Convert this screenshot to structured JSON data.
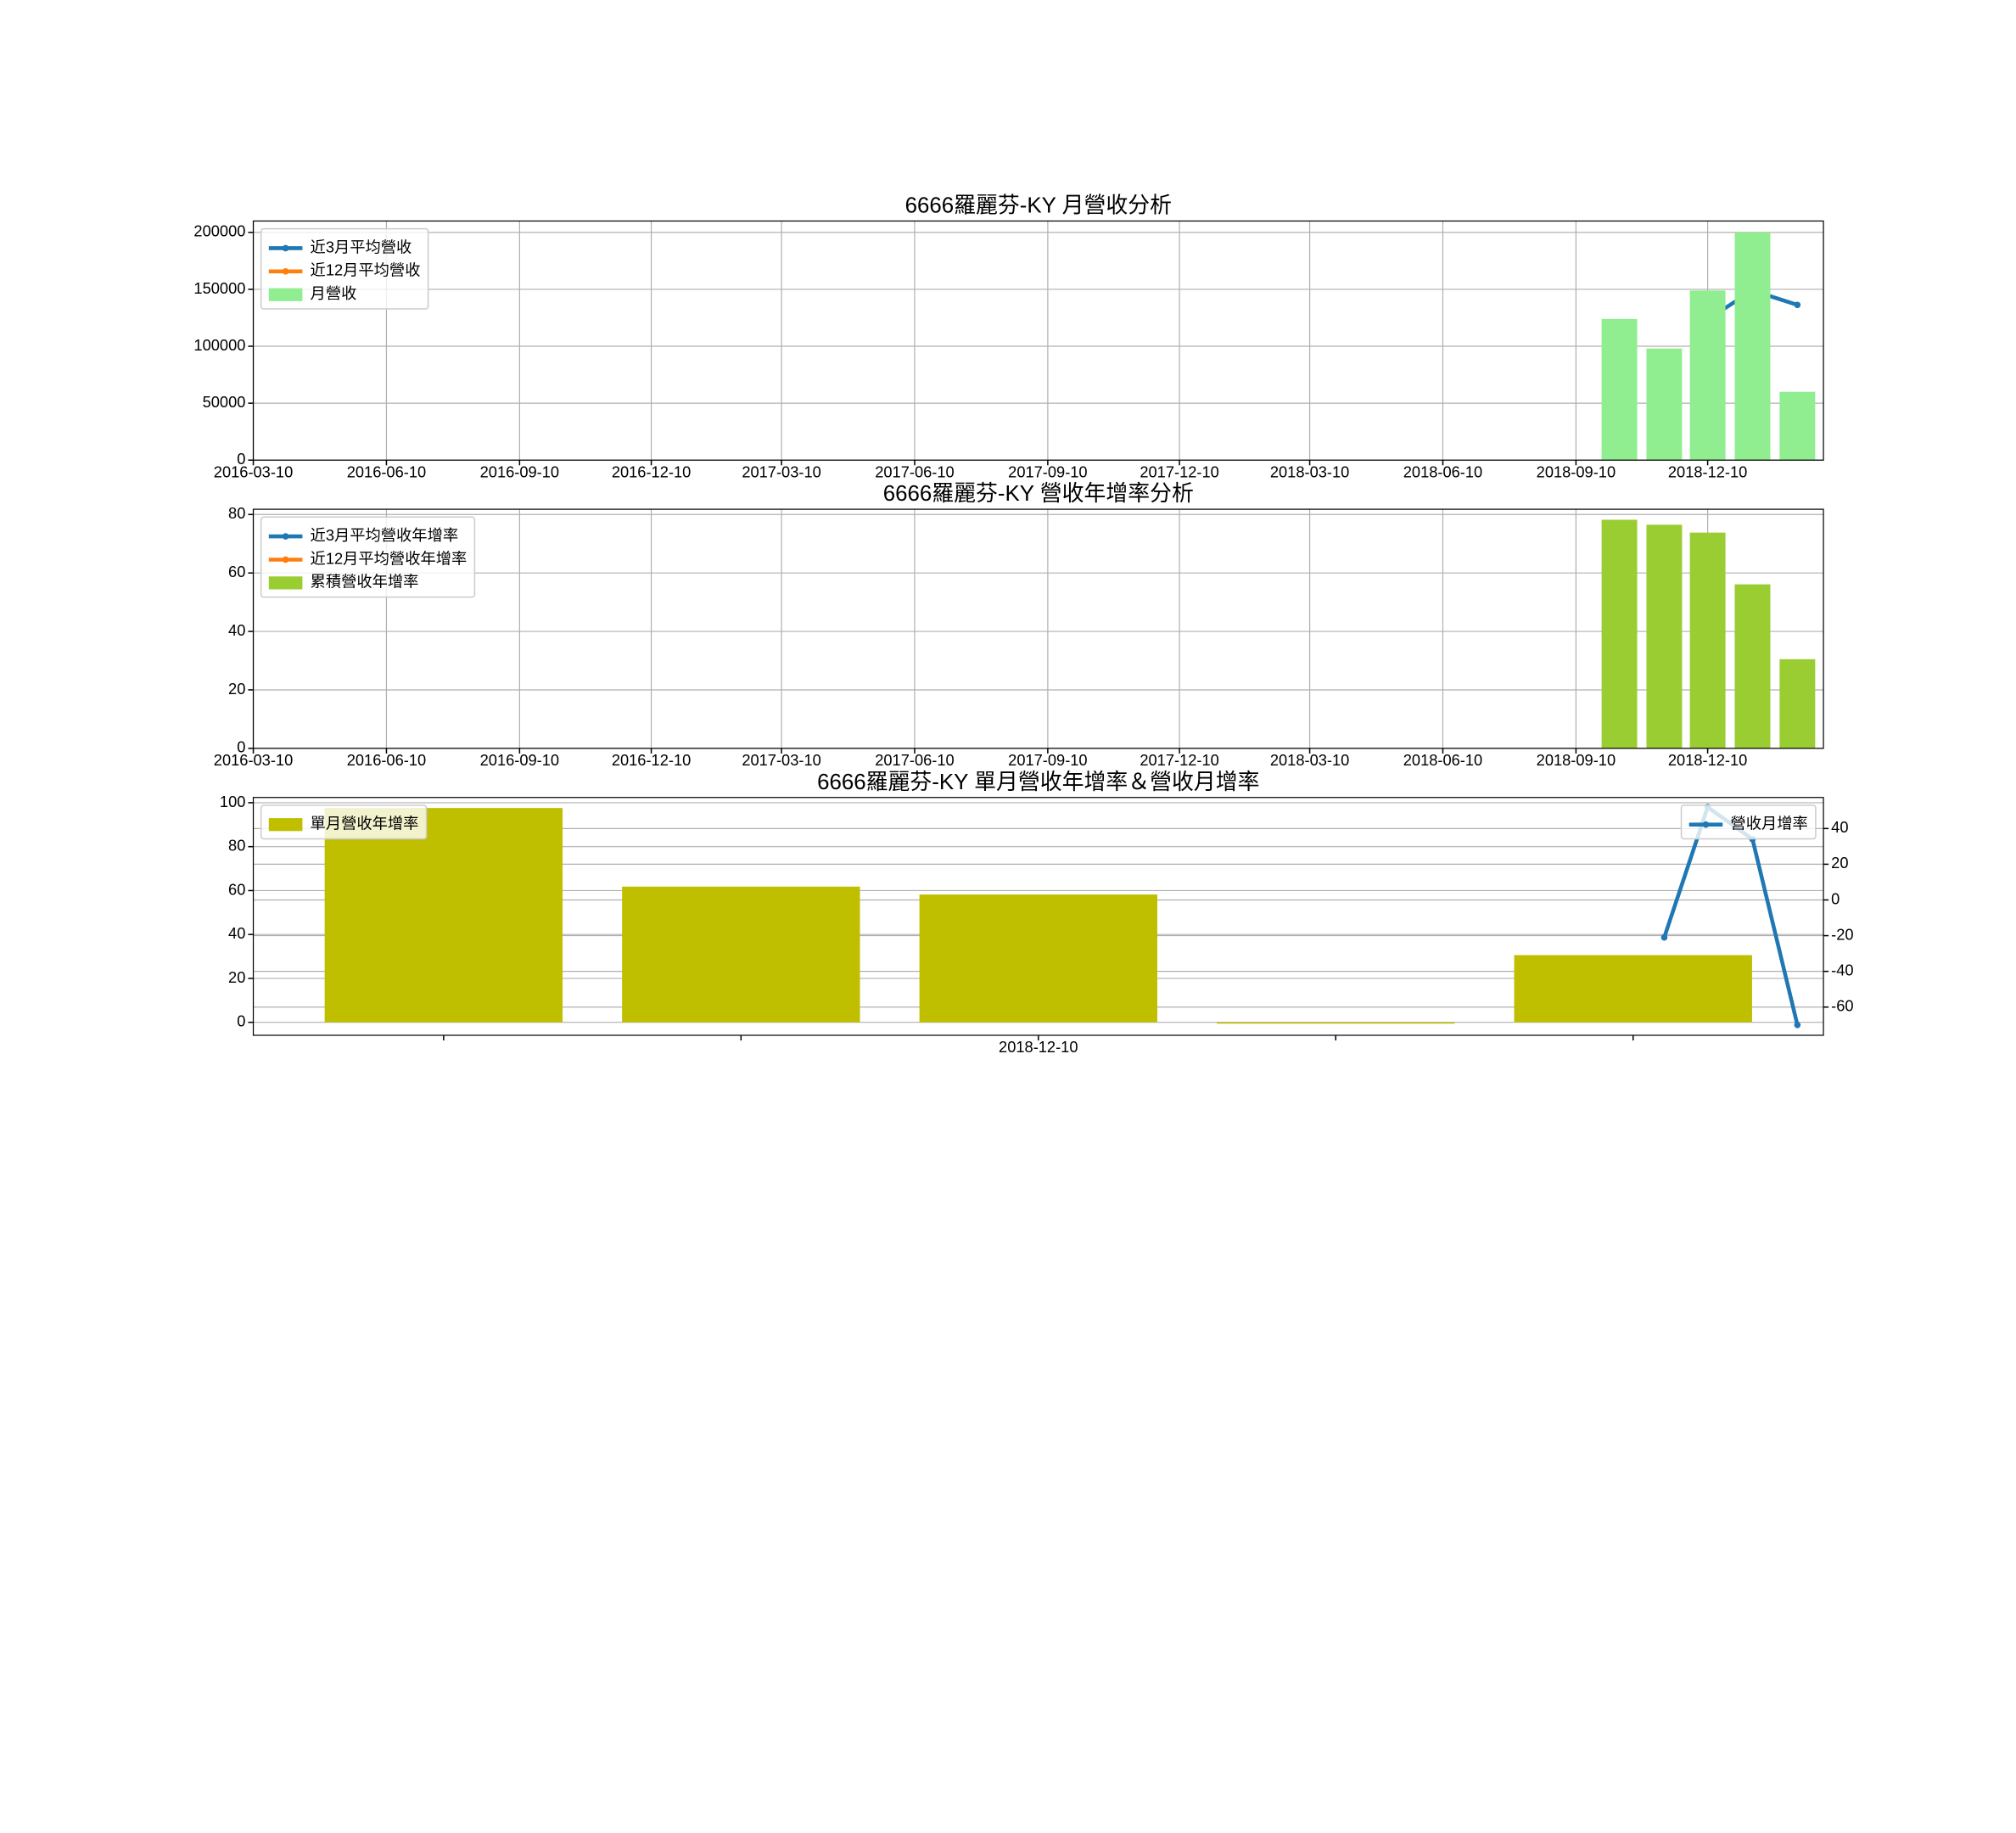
{
  "chart_data": [
    {
      "type": "bar_line",
      "title": "6666羅麗芬-KY 月營收分析",
      "x": [
        "2018-10-10",
        "2018-11-10",
        "2018-12-10",
        "2019-01-10",
        "2019-02-10"
      ],
      "series": [
        {
          "name": "近3月平均營收",
          "kind": "line",
          "color": "#1f77b4",
          "values": [
            null,
            null,
            123667,
            149000,
            136333
          ]
        },
        {
          "name": "近12月平均營收",
          "kind": "line",
          "color": "#ff7f0e",
          "values": [
            null,
            null,
            null,
            null,
            null
          ]
        },
        {
          "name": "月營收",
          "kind": "bar",
          "color": "#90ee90",
          "values": [
            124000,
            98000,
            149000,
            200000,
            60000
          ]
        }
      ],
      "xlim": [
        "2016-03-10",
        "2019-02-28"
      ],
      "xticks": [
        "2016-03-10",
        "2016-06-10",
        "2016-09-10",
        "2016-12-10",
        "2017-03-10",
        "2017-06-10",
        "2017-09-10",
        "2017-12-10",
        "2018-03-10",
        "2018-06-10",
        "2018-09-10",
        "2018-12-10"
      ],
      "ylim": [
        0,
        210000
      ],
      "yticks": [
        0,
        50000,
        100000,
        150000,
        200000
      ],
      "grid": true,
      "legend": "upper left"
    },
    {
      "type": "bar_line",
      "title": "6666羅麗芬-KY 營收年增率分析",
      "x": [
        "2018-10-10",
        "2018-11-10",
        "2018-12-10",
        "2019-01-10",
        "2019-02-10"
      ],
      "series": [
        {
          "name": "近3月平均營收年增率",
          "kind": "line",
          "color": "#1f77b4",
          "values": [
            null,
            null,
            null,
            null,
            null
          ]
        },
        {
          "name": "近12月平均營收年增率",
          "kind": "line",
          "color": "#ff7f0e",
          "values": [
            null,
            null,
            null,
            null,
            null
          ]
        },
        {
          "name": "累積營收年增率",
          "kind": "bar",
          "color": "#9acd32",
          "values": [
            78.2,
            76.5,
            73.8,
            56.1,
            30.5
          ]
        }
      ],
      "xlim": [
        "2016-03-10",
        "2019-02-28"
      ],
      "xticks": [
        "2016-03-10",
        "2016-06-10",
        "2016-09-10",
        "2016-12-10",
        "2017-03-10",
        "2017-06-10",
        "2017-09-10",
        "2017-12-10",
        "2018-03-10",
        "2018-06-10",
        "2018-09-10",
        "2018-12-10"
      ],
      "ylim": [
        0,
        81.8
      ],
      "yticks": [
        0,
        20,
        40,
        60,
        80
      ],
      "grid": true,
      "legend": "upper left"
    },
    {
      "type": "bar_line",
      "title": "6666羅麗芬-KY 單月營收年增率＆營收月增率",
      "categories": [
        null,
        null,
        "2018-12-10",
        null,
        null
      ],
      "series": [
        {
          "name": "單月營收年增率",
          "kind": "bar",
          "color": "#bfbf00",
          "values": [
            97.6,
            61.8,
            58.2,
            -0.6,
            30.6
          ]
        },
        {
          "name": "營收月增率",
          "kind": "line",
          "axis": "y2",
          "color": "#1f77b4",
          "x": [
            "2018-11-10",
            "2018-12-10",
            "2019-01-10",
            "2019-02-10"
          ],
          "values": [
            -21,
            52,
            34,
            -70
          ]
        }
      ],
      "xlim": [
        "2016-03-10",
        "2019-02-28"
      ],
      "ylim": [
        -5.9,
        102.4
      ],
      "yticks": [
        0,
        20,
        40,
        60,
        80,
        100
      ],
      "y2lim": [
        -75.8,
        57.4
      ],
      "y2ticks": [
        -60,
        -40,
        -20,
        0,
        20,
        40
      ],
      "grid": true,
      "legend": "upper left",
      "y2_legend": "upper right"
    }
  ]
}
